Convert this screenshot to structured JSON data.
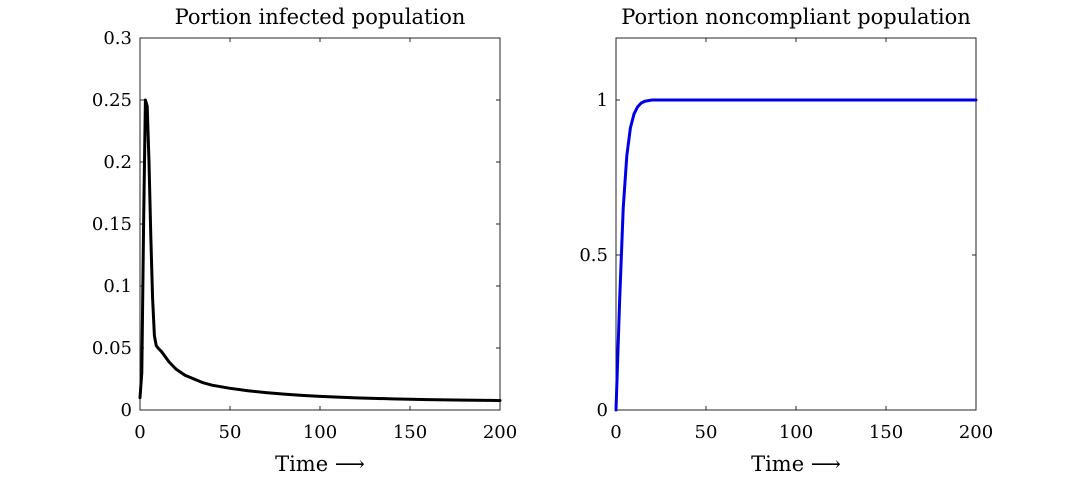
{
  "chart_data": [
    {
      "type": "line",
      "title": "Portion infected population",
      "xlabel": "Time ⟶",
      "ylabel": "",
      "xlim": [
        0,
        200
      ],
      "ylim": [
        0,
        0.3
      ],
      "xticks": [
        0,
        50,
        100,
        150,
        200
      ],
      "xtick_labels": [
        "0",
        "50",
        "100",
        "150",
        "200"
      ],
      "yticks": [
        0,
        0.05,
        0.1,
        0.15,
        0.2,
        0.25,
        0.3
      ],
      "ytick_labels": [
        "0",
        "0.05",
        "0.1",
        "0.15",
        "0.2",
        "0.25",
        "0.3"
      ],
      "grid": false,
      "series": [
        {
          "name": "infected",
          "color": "#000000",
          "x": [
            0,
            1,
            2,
            3,
            4,
            5,
            6,
            7,
            8,
            9,
            10,
            12,
            14,
            16,
            18,
            20,
            25,
            30,
            35,
            40,
            50,
            60,
            70,
            80,
            90,
            100,
            120,
            140,
            160,
            180,
            200
          ],
          "y": [
            0.01,
            0.03,
            0.15,
            0.25,
            0.245,
            0.2,
            0.14,
            0.09,
            0.06,
            0.052,
            0.05,
            0.047,
            0.043,
            0.039,
            0.036,
            0.033,
            0.028,
            0.025,
            0.022,
            0.02,
            0.0175,
            0.0155,
            0.014,
            0.0128,
            0.0118,
            0.011,
            0.0098,
            0.009,
            0.0084,
            0.008,
            0.0077
          ]
        }
      ]
    },
    {
      "type": "line",
      "title": "Portion noncompliant population",
      "xlabel": "Time ⟶",
      "ylabel": "",
      "xlim": [
        0,
        200
      ],
      "ylim": [
        0,
        1.2
      ],
      "xticks": [
        0,
        50,
        100,
        150,
        200
      ],
      "xtick_labels": [
        "0",
        "50",
        "100",
        "150",
        "200"
      ],
      "yticks": [
        0,
        0.5,
        1
      ],
      "ytick_labels": [
        "0",
        "0.5",
        "1"
      ],
      "grid": false,
      "series": [
        {
          "name": "noncompliant",
          "color": "#0000e6",
          "x": [
            0,
            2,
            4,
            6,
            8,
            10,
            12,
            14,
            16,
            18,
            20,
            25,
            30,
            50,
            100,
            150,
            200
          ],
          "y": [
            0,
            0.35,
            0.65,
            0.82,
            0.91,
            0.955,
            0.978,
            0.99,
            0.996,
            0.998,
            1.0,
            1.0,
            1.0,
            1.0,
            1.0,
            1.0,
            1.0
          ]
        }
      ]
    }
  ]
}
